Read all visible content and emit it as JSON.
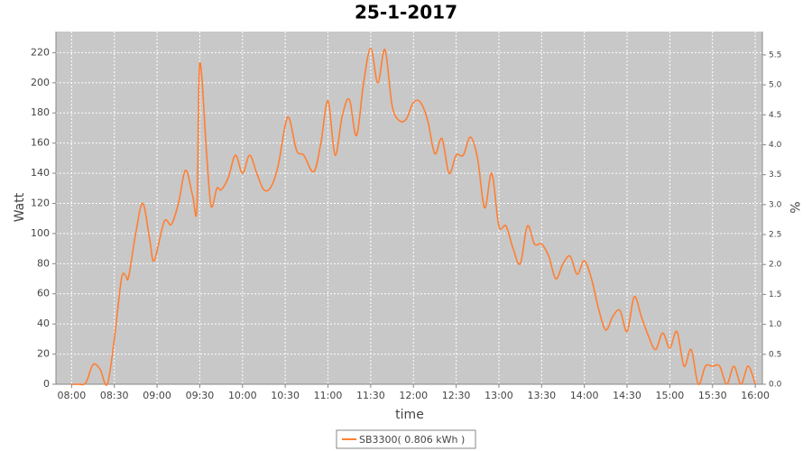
{
  "chart_data": {
    "type": "line",
    "title": "25-1-2017",
    "x_label": "time",
    "y_label": "Watt",
    "y2_label": "%",
    "x": [
      "08:00",
      "08:05",
      "08:10",
      "08:15",
      "08:20",
      "08:25",
      "08:30",
      "08:35",
      "08:38",
      "08:40",
      "08:45",
      "08:50",
      "08:55",
      "08:58",
      "09:05",
      "09:10",
      "09:15",
      "09:20",
      "09:25",
      "09:28",
      "09:30",
      "09:35",
      "09:38",
      "09:42",
      "09:45",
      "09:50",
      "09:55",
      "10:00",
      "10:05",
      "10:10",
      "10:15",
      "10:20",
      "10:25",
      "10:30",
      "10:33",
      "10:38",
      "10:43",
      "10:50",
      "10:55",
      "11:00",
      "11:05",
      "11:10",
      "11:15",
      "11:20",
      "11:25",
      "11:30",
      "11:35",
      "11:40",
      "11:45",
      "11:50",
      "11:55",
      "12:00",
      "12:05",
      "12:10",
      "12:15",
      "12:20",
      "12:25",
      "12:30",
      "12:35",
      "12:40",
      "12:45",
      "12:50",
      "12:55",
      "13:00",
      "13:05",
      "13:10",
      "13:15",
      "13:20",
      "13:25",
      "13:30",
      "13:35",
      "13:40",
      "13:45",
      "13:50",
      "13:55",
      "14:00",
      "14:05",
      "14:10",
      "14:15",
      "14:20",
      "14:25",
      "14:30",
      "14:35",
      "14:40",
      "14:45",
      "14:50",
      "14:55",
      "15:00",
      "15:05",
      "15:10",
      "15:15",
      "15:20",
      "15:25",
      "15:30",
      "15:35",
      "15:40",
      "15:45",
      "15:50",
      "15:55",
      "16:00"
    ],
    "series": [
      {
        "name": "SB3300( 0.806 kWh )",
        "color": "#ff7f33",
        "values": [
          0,
          0,
          1,
          13,
          10,
          0,
          30,
          70,
          72,
          71,
          100,
          120,
          95,
          82,
          108,
          106,
          120,
          142,
          125,
          117,
          213,
          150,
          118,
          130,
          129,
          137,
          152,
          140,
          152,
          140,
          129,
          131,
          145,
          172,
          176,
          155,
          152,
          141,
          160,
          188,
          152,
          178,
          189,
          165,
          200,
          223,
          200,
          222,
          185,
          175,
          176,
          187,
          187,
          175,
          153,
          163,
          140,
          152,
          152,
          164,
          150,
          117,
          140,
          105,
          105,
          90,
          80,
          105,
          93,
          93,
          85,
          70,
          80,
          85,
          73,
          82,
          70,
          50,
          36,
          45,
          49,
          35,
          58,
          45,
          32,
          23,
          34,
          24,
          35,
          12,
          23,
          0,
          12,
          12,
          12,
          0,
          12,
          0,
          12,
          0
        ]
      }
    ],
    "xlim": [
      "07:49",
      "16:05"
    ],
    "xticks": [
      "08:00",
      "08:30",
      "09:00",
      "09:30",
      "10:00",
      "10:30",
      "11:00",
      "11:30",
      "12:00",
      "12:30",
      "13:00",
      "13:30",
      "14:00",
      "14:30",
      "15:00",
      "15:30",
      "16:00"
    ],
    "ylim": [
      0,
      234
    ],
    "yticks": [
      0,
      20,
      40,
      60,
      80,
      100,
      120,
      140,
      160,
      180,
      200,
      220
    ],
    "y2lim": [
      0,
      5.89
    ],
    "y2ticks": [
      {
        "value": 0,
        "label": "0.0"
      },
      {
        "value": 0.5,
        "label": "0.5"
      },
      {
        "value": 1,
        "label": "1.0"
      },
      {
        "value": 1.5,
        "label": "1.5"
      },
      {
        "value": 2,
        "label": "2.0"
      },
      {
        "value": 2.5,
        "label": "2.5"
      },
      {
        "value": 3,
        "label": "3.0"
      },
      {
        "value": 3.5,
        "label": "3.5"
      },
      {
        "value": 4,
        "label": "4.0"
      },
      {
        "value": 4.5,
        "label": "4.5"
      },
      {
        "value": 5,
        "label": "5.0"
      },
      {
        "value": 5.5,
        "label": "5.5"
      }
    ],
    "grid": true,
    "legend": "bottom"
  }
}
